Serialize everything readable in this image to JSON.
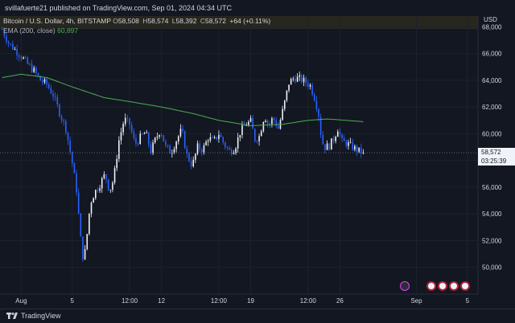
{
  "header": {
    "published_text": "svillafuerte21 published on TradingView.com, Sep 01, 2024 04:34 UTC"
  },
  "legend": {
    "symbol": "Bitcoin / U.S. Dollar, 4h, BITSTAMP",
    "open_label": "O",
    "open": "58,508",
    "high_label": "H",
    "high": "58,574",
    "low_label": "L",
    "low": "58,392",
    "close_label": "C",
    "close": "58,572",
    "change": "+64 (+0.11%)",
    "ema_name": "EMA (200, close)",
    "ema_value": "60,897"
  },
  "price_tag": {
    "price": "58,572",
    "countdown": "03:25:39"
  },
  "footer": {
    "brand": "TradingView"
  },
  "colors": {
    "background": "#131722",
    "up": "#f0f3fa",
    "down": "#2962ff",
    "ema": "#4caf50",
    "grid": "#1e222d"
  },
  "chart_data": {
    "type": "candlestick",
    "y_axis_label": "USD",
    "ylim": [
      48000,
      68800
    ],
    "y_ticks": [
      "68,000",
      "66,000",
      "64,000",
      "62,000",
      "60,000",
      "58,000",
      "56,000",
      "54,000",
      "52,000",
      "50,000"
    ],
    "y_tick_values": [
      68000,
      66000,
      64000,
      62000,
      60000,
      58000,
      56000,
      54000,
      52000,
      50000
    ],
    "x_tick_labels": [
      "Aug",
      "5",
      "12:00",
      "12",
      "12:00",
      "19",
      "12:00",
      "26",
      "Sep",
      "5"
    ],
    "x_tick_hours": [
      0,
      96,
      204,
      264,
      372,
      432,
      540,
      600,
      744,
      840
    ],
    "bar_interval_hours": 4,
    "start": "2024-07-31 00:00 UTC",
    "end": "2024-09-01 04:00 UTC",
    "anchors": [
      [
        -36,
        67800
      ],
      [
        -24,
        66800
      ],
      [
        -12,
        66300
      ],
      [
        0,
        65800
      ],
      [
        12,
        65200
      ],
      [
        24,
        64700
      ],
      [
        36,
        64000
      ],
      [
        48,
        63700
      ],
      [
        60,
        62900
      ],
      [
        72,
        61600
      ],
      [
        84,
        60400
      ],
      [
        96,
        57800
      ],
      [
        104,
        55800
      ],
      [
        110,
        53000
      ],
      [
        114,
        51200
      ],
      [
        118,
        50500
      ],
      [
        124,
        52500
      ],
      [
        130,
        54800
      ],
      [
        138,
        55600
      ],
      [
        148,
        56200
      ],
      [
        158,
        57000
      ],
      [
        166,
        55700
      ],
      [
        174,
        56600
      ],
      [
        184,
        59500
      ],
      [
        194,
        61100
      ],
      [
        204,
        60700
      ],
      [
        214,
        59200
      ],
      [
        224,
        59700
      ],
      [
        234,
        60100
      ],
      [
        244,
        58700
      ],
      [
        252,
        59500
      ],
      [
        262,
        60300
      ],
      [
        272,
        59000
      ],
      [
        282,
        58600
      ],
      [
        292,
        59500
      ],
      [
        302,
        60300
      ],
      [
        312,
        58400
      ],
      [
        322,
        57600
      ],
      [
        332,
        59000
      ],
      [
        342,
        58800
      ],
      [
        352,
        59700
      ],
      [
        362,
        59400
      ],
      [
        372,
        60000
      ],
      [
        382,
        59200
      ],
      [
        392,
        58700
      ],
      [
        402,
        58900
      ],
      [
        412,
        60100
      ],
      [
        422,
        60700
      ],
      [
        432,
        60900
      ],
      [
        440,
        59600
      ],
      [
        448,
        59800
      ],
      [
        458,
        61400
      ],
      [
        466,
        60600
      ],
      [
        474,
        61200
      ],
      [
        484,
        60400
      ],
      [
        494,
        62000
      ],
      [
        504,
        63800
      ],
      [
        514,
        64200
      ],
      [
        524,
        64100
      ],
      [
        534,
        63900
      ],
      [
        544,
        63600
      ],
      [
        554,
        62500
      ],
      [
        560,
        61400
      ],
      [
        566,
        59400
      ],
      [
        572,
        59000
      ],
      [
        580,
        59100
      ],
      [
        588,
        59600
      ],
      [
        596,
        60400
      ],
      [
        604,
        59400
      ],
      [
        612,
        59300
      ],
      [
        620,
        59100
      ],
      [
        628,
        58900
      ],
      [
        636,
        58700
      ],
      [
        644,
        58572
      ]
    ],
    "ema_series": [
      [
        -36,
        64200
      ],
      [
        0,
        64450
      ],
      [
        48,
        64200
      ],
      [
        96,
        63500
      ],
      [
        156,
        62700
      ],
      [
        204,
        62400
      ],
      [
        264,
        62000
      ],
      [
        324,
        61500
      ],
      [
        372,
        61000
      ],
      [
        432,
        60600
      ],
      [
        492,
        60700
      ],
      [
        540,
        61000
      ],
      [
        576,
        61100
      ],
      [
        612,
        61000
      ],
      [
        644,
        60897
      ]
    ],
    "last_price": 58572
  }
}
